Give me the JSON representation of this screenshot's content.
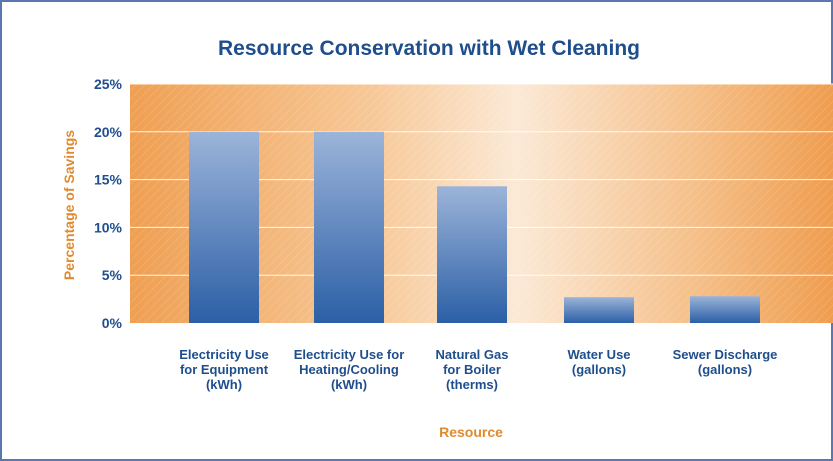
{
  "chart_data": {
    "type": "bar",
    "title": "Resource Conservation with Wet Cleaning",
    "xlabel": "Resource",
    "ylabel": "Percentage of Savings",
    "categories": [
      [
        "Electricity Use",
        "for Equipment",
        "(kWh)"
      ],
      [
        "Electricity Use for",
        "Heating/Cooling",
        "(kWh)"
      ],
      [
        "Natural Gas",
        "for Boiler",
        "(therms)"
      ],
      [
        "Water Use",
        "(gallons)"
      ],
      [
        "Sewer Discharge",
        "(gallons)"
      ]
    ],
    "values": [
      20,
      20,
      14.3,
      2.7,
      2.8
    ],
    "ylim": [
      0,
      25
    ],
    "yticks": [
      0,
      5,
      10,
      15,
      20,
      25
    ],
    "ytick_labels": [
      "0%",
      "5%",
      "10%",
      "15%",
      "20%",
      "25%"
    ],
    "grid": true,
    "legend": "none",
    "colors": {
      "title": "#1f4e8c",
      "axis_title": "#e08a2e",
      "tick_text": "#1f4e8c",
      "bar_top": "#9ab3d8",
      "bar_bottom": "#2f62a8",
      "plot_orange": "#f0a55a",
      "plot_light": "#fbe6cf",
      "border": "#5a78b0"
    }
  }
}
